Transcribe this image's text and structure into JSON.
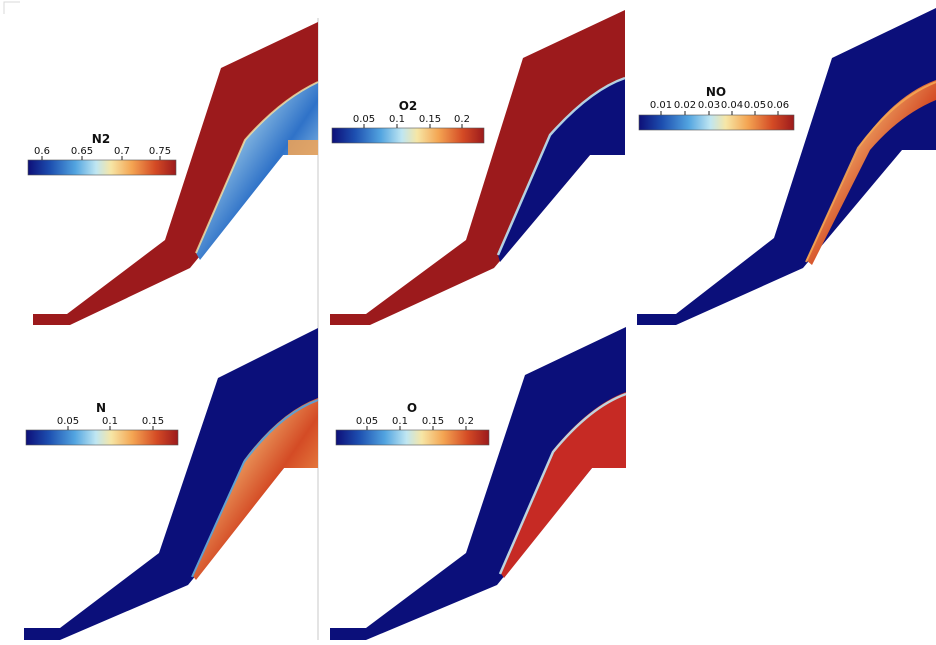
{
  "colors": {
    "high": "#9c1a1c",
    "low": "#0b0f7a",
    "divider": "#bfbfbf",
    "colormap": [
      "#0d0f78",
      "#1d4fb0",
      "#52a4e0",
      "#bfe6f2",
      "#f6e6a6",
      "#f4a553",
      "#d44b25",
      "#9c1a1c"
    ]
  },
  "panels": [
    {
      "field": "N2",
      "ticks": [
        "0.6",
        "0.65",
        "0.7",
        "0.75"
      ]
    },
    {
      "field": "O2",
      "ticks": [
        "0.05",
        "0.1",
        "0.15",
        "0.2"
      ]
    },
    {
      "field": "NO",
      "ticks": [
        "0.01",
        "0.02",
        "0.03",
        "0.04",
        "0.05",
        "0.06"
      ]
    },
    {
      "field": "N",
      "ticks": [
        "0.05",
        "0.1",
        "0.15"
      ]
    },
    {
      "field": "O",
      "ticks": [
        "0.05",
        "0.1",
        "0.15",
        "0.2"
      ]
    }
  ]
}
